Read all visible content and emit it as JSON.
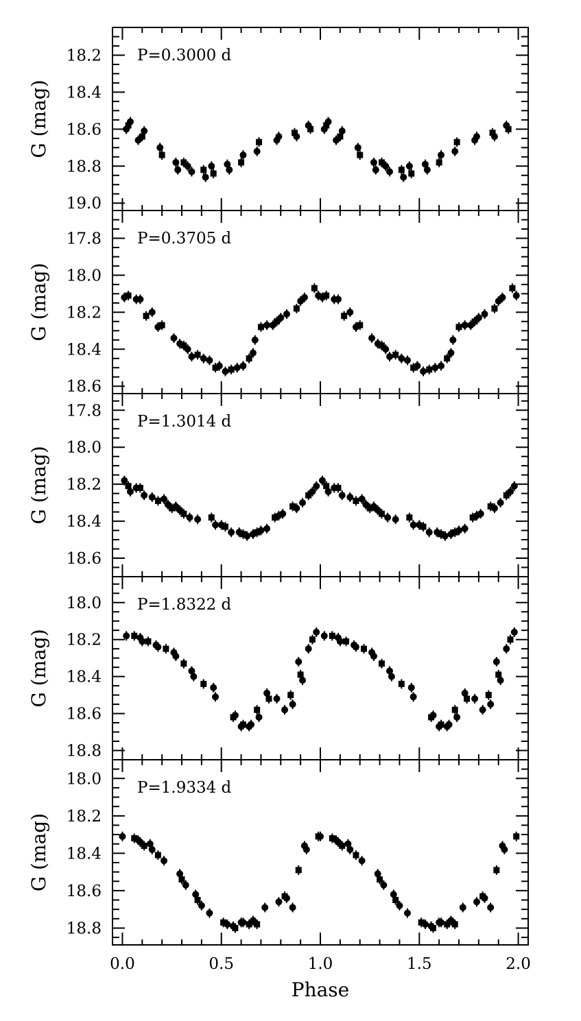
{
  "figure": {
    "xlabel": "Phase",
    "ylabel": "G (mag)",
    "frame_color": "#000000",
    "marker_color": "#000000",
    "background": "#ffffff"
  },
  "chart_data": [
    {
      "type": "scatter",
      "title": "P=0.3000 d",
      "xlabel": "Phase",
      "ylabel": "G (mag)",
      "xlim": [
        -0.05,
        2.05
      ],
      "ylim": [
        19.04,
        18.05
      ],
      "y_inverted": true,
      "xticks": [
        "0.0",
        "0.5",
        "1.0",
        "1.5",
        "2.0"
      ],
      "yticks": [
        "18.2",
        "18.4",
        "18.6",
        "18.8",
        "19.0"
      ],
      "grid": false,
      "x": [
        0.02,
        0.03,
        0.04,
        0.08,
        0.1,
        0.11,
        0.19,
        0.2,
        0.27,
        0.28,
        0.31,
        0.33,
        0.35,
        0.41,
        0.42,
        0.45,
        0.46,
        0.53,
        0.54,
        0.6,
        0.61,
        0.68,
        0.69,
        0.78,
        0.79,
        0.87,
        0.88,
        0.94,
        0.95
      ],
      "y": [
        18.6,
        18.58,
        18.56,
        18.66,
        18.64,
        18.61,
        18.7,
        18.74,
        18.78,
        18.82,
        18.78,
        18.8,
        18.83,
        18.82,
        18.86,
        18.8,
        18.84,
        18.79,
        18.82,
        18.78,
        18.74,
        18.72,
        18.67,
        18.66,
        18.64,
        18.62,
        18.64,
        18.58,
        18.6
      ],
      "repeat_offset": 1.0
    },
    {
      "type": "scatter",
      "title": "P=0.3705 d",
      "xlabel": "Phase",
      "ylabel": "G (mag)",
      "xlim": [
        -0.05,
        2.05
      ],
      "ylim": [
        18.64,
        17.65
      ],
      "y_inverted": true,
      "xticks": [
        "0.0",
        "0.5",
        "1.0",
        "1.5",
        "2.0"
      ],
      "yticks": [
        "17.8",
        "18.0",
        "18.2",
        "18.4",
        "18.6"
      ],
      "grid": false,
      "x": [
        0.01,
        0.03,
        0.07,
        0.09,
        0.12,
        0.15,
        0.18,
        0.2,
        0.26,
        0.29,
        0.31,
        0.33,
        0.35,
        0.38,
        0.41,
        0.44,
        0.47,
        0.49,
        0.52,
        0.55,
        0.58,
        0.61,
        0.64,
        0.66,
        0.67,
        0.7,
        0.73,
        0.76,
        0.78,
        0.8,
        0.83,
        0.88,
        0.9,
        0.92,
        0.97,
        0.99
      ],
      "y": [
        18.12,
        18.11,
        18.13,
        18.13,
        18.22,
        18.2,
        18.28,
        18.27,
        18.34,
        18.37,
        18.38,
        18.4,
        18.44,
        18.43,
        18.45,
        18.46,
        18.5,
        18.49,
        18.52,
        18.51,
        18.5,
        18.49,
        18.45,
        18.42,
        18.35,
        18.28,
        18.27,
        18.27,
        18.25,
        18.23,
        18.21,
        18.18,
        18.14,
        18.12,
        18.07,
        18.11
      ],
      "repeat_offset": 1.0
    },
    {
      "type": "scatter",
      "title": "P=1.3014 d",
      "xlabel": "Phase",
      "ylabel": "G (mag)",
      "xlim": [
        -0.05,
        2.05
      ],
      "ylim": [
        18.7,
        17.71
      ],
      "y_inverted": true,
      "xticks": [
        "0.0",
        "0.5",
        "1.0",
        "1.5",
        "2.0"
      ],
      "yticks": [
        "17.8",
        "18.0",
        "18.2",
        "18.4",
        "18.6"
      ],
      "grid": false,
      "x": [
        0.01,
        0.03,
        0.04,
        0.07,
        0.09,
        0.11,
        0.15,
        0.18,
        0.21,
        0.23,
        0.25,
        0.27,
        0.29,
        0.31,
        0.34,
        0.38,
        0.45,
        0.47,
        0.5,
        0.52,
        0.55,
        0.59,
        0.61,
        0.63,
        0.66,
        0.68,
        0.7,
        0.73,
        0.77,
        0.79,
        0.81,
        0.86,
        0.88,
        0.91,
        0.94,
        0.96,
        0.98
      ],
      "y": [
        18.18,
        18.21,
        18.24,
        18.22,
        18.22,
        18.26,
        18.27,
        18.29,
        18.28,
        18.31,
        18.33,
        18.32,
        18.34,
        18.36,
        18.38,
        18.39,
        18.38,
        18.42,
        18.42,
        18.43,
        18.46,
        18.46,
        18.47,
        18.48,
        18.47,
        18.46,
        18.45,
        18.44,
        18.38,
        18.37,
        18.36,
        18.32,
        18.33,
        18.3,
        18.26,
        18.24,
        18.21
      ],
      "repeat_offset": 1.0
    },
    {
      "type": "scatter",
      "title": "P=1.8322 d",
      "xlabel": "Phase",
      "ylabel": "G (mag)",
      "xlim": [
        -0.05,
        2.05
      ],
      "ylim": [
        18.85,
        17.86
      ],
      "y_inverted": true,
      "xticks": [
        "0.0",
        "0.5",
        "1.0",
        "1.5",
        "2.0"
      ],
      "yticks": [
        "18.0",
        "18.2",
        "18.4",
        "18.6",
        "18.8"
      ],
      "grid": false,
      "x": [
        0.02,
        0.06,
        0.09,
        0.1,
        0.13,
        0.17,
        0.18,
        0.22,
        0.26,
        0.27,
        0.31,
        0.35,
        0.36,
        0.41,
        0.46,
        0.47,
        0.56,
        0.57,
        0.6,
        0.61,
        0.64,
        0.65,
        0.68,
        0.69,
        0.73,
        0.74,
        0.78,
        0.82,
        0.85,
        0.86,
        0.89,
        0.9,
        0.91,
        0.94,
        0.96,
        0.98
      ],
      "y": [
        18.18,
        18.18,
        18.19,
        18.21,
        18.21,
        18.23,
        18.24,
        18.25,
        18.27,
        18.29,
        18.33,
        18.37,
        18.4,
        18.44,
        18.46,
        18.51,
        18.62,
        18.61,
        18.67,
        18.66,
        18.67,
        18.66,
        18.58,
        18.62,
        18.49,
        18.52,
        18.52,
        18.58,
        18.5,
        18.55,
        18.32,
        18.39,
        18.42,
        18.25,
        18.2,
        18.16
      ],
      "repeat_offset": 1.0
    },
    {
      "type": "scatter",
      "title": "P=1.9334 d",
      "xlabel": "Phase",
      "ylabel": "G (mag)",
      "xlim": [
        -0.05,
        2.05
      ],
      "ylim": [
        18.89,
        17.9
      ],
      "y_inverted": true,
      "xticks": [
        "0.0",
        "0.5",
        "1.0",
        "1.5",
        "2.0"
      ],
      "yticks": [
        "18.0",
        "18.2",
        "18.4",
        "18.6",
        "18.8"
      ],
      "grid": false,
      "x": [
        0.0,
        0.06,
        0.08,
        0.09,
        0.11,
        0.14,
        0.15,
        0.18,
        0.21,
        0.29,
        0.3,
        0.32,
        0.37,
        0.38,
        0.4,
        0.44,
        0.51,
        0.53,
        0.56,
        0.57,
        0.6,
        0.61,
        0.64,
        0.66,
        0.67,
        0.68,
        0.72,
        0.79,
        0.82,
        0.83,
        0.86,
        0.89,
        0.92,
        0.93,
        0.99
      ],
      "y": [
        18.31,
        18.32,
        18.33,
        18.34,
        18.36,
        18.35,
        18.38,
        18.41,
        18.44,
        18.51,
        18.54,
        18.57,
        18.62,
        18.65,
        18.68,
        18.72,
        18.77,
        18.78,
        18.79,
        18.8,
        18.77,
        18.77,
        18.78,
        18.76,
        18.77,
        18.78,
        18.69,
        18.66,
        18.63,
        18.64,
        18.69,
        18.49,
        18.36,
        18.38,
        18.31
      ],
      "repeat_offset": 1.0
    }
  ]
}
